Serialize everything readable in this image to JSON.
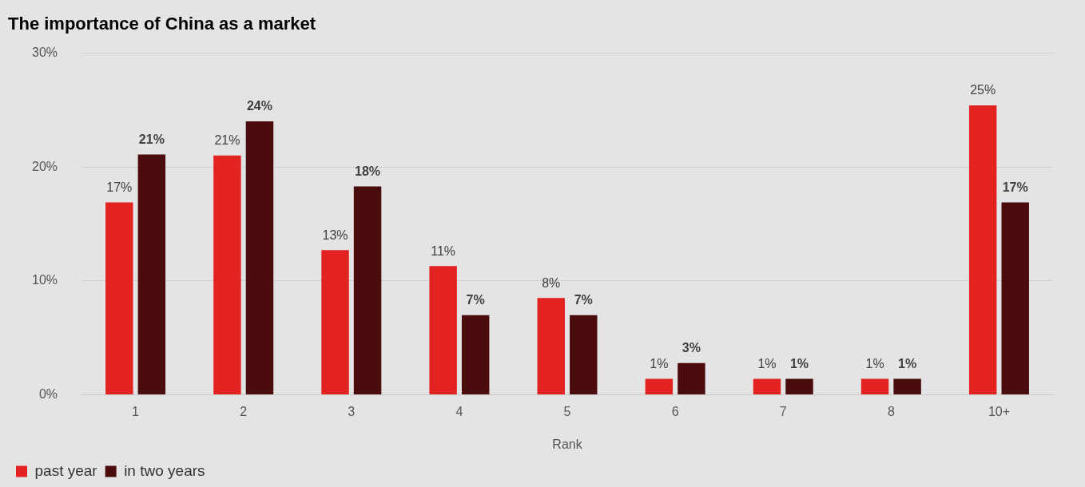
{
  "chart_data": {
    "type": "bar",
    "title": "The importance of China as a market",
    "xlabel": "Rank",
    "categories": [
      "1",
      "2",
      "3",
      "4",
      "5",
      "6",
      "7",
      "8",
      "10+"
    ],
    "series": [
      {
        "name": "past year",
        "color": "#e32222",
        "values": [
          16.9,
          21.0,
          12.7,
          11.3,
          8.5,
          1.4,
          1.4,
          1.4,
          25.4
        ],
        "value_labels": [
          "17%",
          "21%",
          "13%",
          "11%",
          "8%",
          "1%",
          "1%",
          "1%",
          "25%"
        ]
      },
      {
        "name": "in two years",
        "color": "#4a0c0c",
        "values": [
          21.1,
          24.0,
          18.3,
          7.0,
          7.0,
          2.8,
          1.4,
          1.4,
          16.9
        ],
        "value_labels": [
          "21%",
          "24%",
          "18%",
          "7%",
          "7%",
          "3%",
          "1%",
          "1%",
          "17%"
        ]
      }
    ],
    "ylim": [
      0,
      30
    ],
    "yticks": [
      {
        "value": 0,
        "label": "0%"
      },
      {
        "value": 10,
        "label": "10%"
      },
      {
        "value": 20,
        "label": "20%"
      },
      {
        "value": 30,
        "label": "30%"
      }
    ],
    "grid": "y",
    "legend": "bottom left"
  }
}
